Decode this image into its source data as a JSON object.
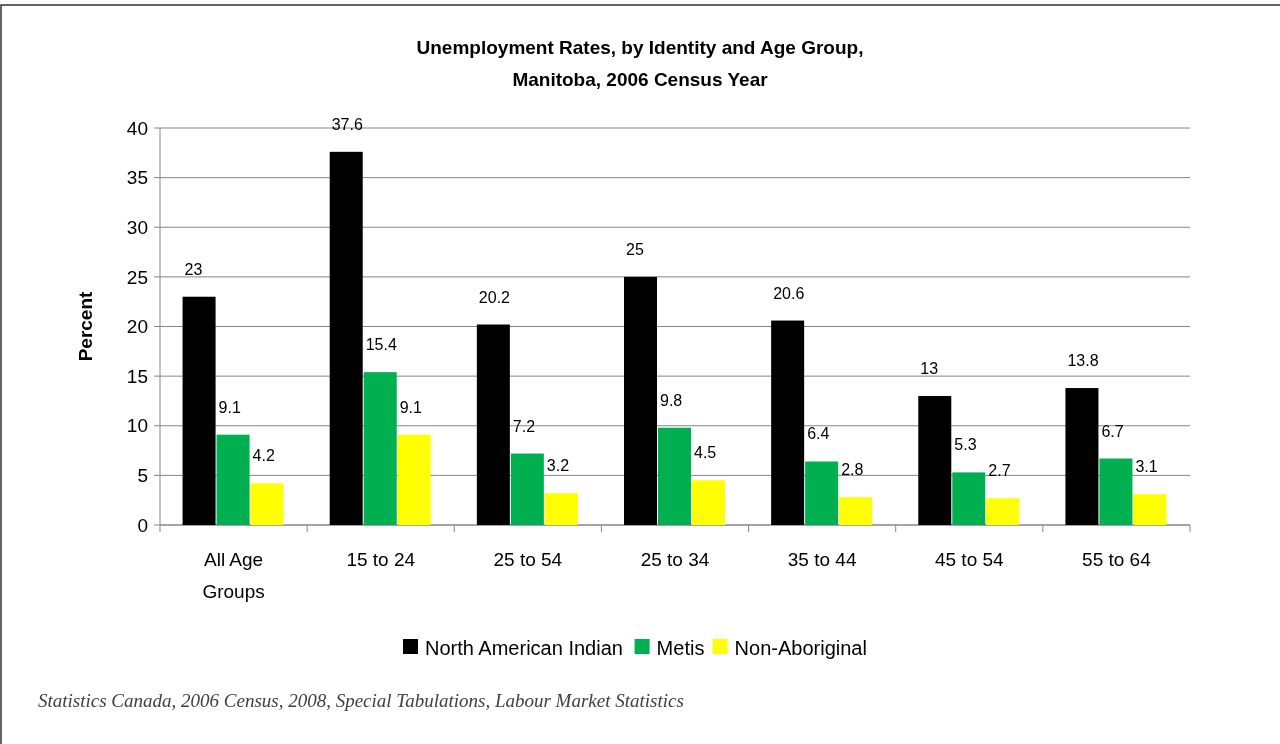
{
  "chart_data": {
    "type": "bar",
    "title": "Unemployment Rates, by Identity and Age Group,\nManitoba, 2006 Census Year",
    "ylabel": "Percent",
    "categories": [
      "All Age Groups",
      "15 to 24",
      "25 to 54",
      "25 to 34",
      "35 to 44",
      "45 to 54",
      "55 to 64"
    ],
    "series": [
      {
        "name": "North American Indian",
        "color": "#000000",
        "values": [
          23,
          37.6,
          20.2,
          25,
          20.6,
          13,
          13.8
        ]
      },
      {
        "name": "Metis",
        "color": "#00b050",
        "values": [
          9.1,
          15.4,
          7.2,
          9.8,
          6.4,
          5.3,
          6.7
        ]
      },
      {
        "name": "Non-Aboriginal",
        "color": "#ffff00",
        "values": [
          4.2,
          9.1,
          3.2,
          4.5,
          2.8,
          2.7,
          3.1
        ]
      }
    ],
    "ylim": [
      0,
      40
    ],
    "yticks": [
      0,
      5,
      10,
      15,
      20,
      25,
      30,
      35,
      40
    ],
    "grid": "y",
    "legend": "bottom",
    "data_labels": true,
    "annotations": [
      "Statistics Canada, 2006 Census, 2008, Special Tabulations, Labour Market Statistics"
    ]
  }
}
